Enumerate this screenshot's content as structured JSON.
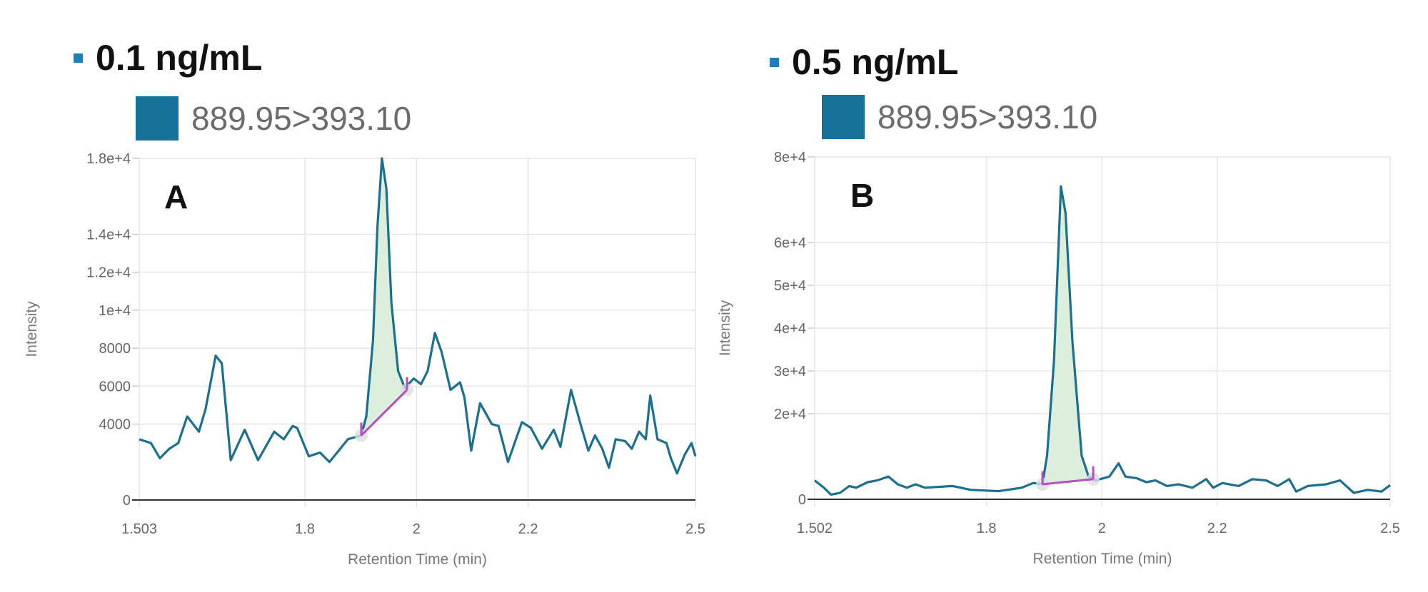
{
  "colors": {
    "title_marker": "#1a7fc1",
    "trace": "#1b6f8f",
    "legend_swatch": "#17729a",
    "peak_fill": "#d8edd9",
    "baseline": "#b44fc0",
    "grid": "#e6e6e6"
  },
  "chart_data": [
    {
      "type": "line",
      "title": "0.1 ng/mL",
      "panel_label": "A",
      "legend": [
        "889.95>393.10"
      ],
      "xlabel": "Retention Time (min)",
      "ylabel": "Intensity",
      "xlim": [
        1.503,
        2.5
      ],
      "ylim": [
        0,
        18000
      ],
      "xticks": [
        1.503,
        1.8,
        2,
        2.2,
        2.5
      ],
      "xtick_labels": [
        "1.503",
        "1.8",
        "2",
        "2.2",
        "2.5"
      ],
      "yticks": [
        0,
        4000,
        6000,
        8000,
        10000,
        12000,
        14000,
        18000
      ],
      "ytick_labels": [
        "0",
        "4000",
        "6000",
        "8000",
        "1e+4",
        "1.2e+4",
        "1.4e+4",
        "1.8e+4"
      ],
      "grid": true,
      "series": [
        {
          "name": "889.95>393.10",
          "x": [
            1.503,
            1.524,
            1.54,
            1.557,
            1.573,
            1.589,
            1.61,
            1.622,
            1.64,
            1.651,
            1.667,
            1.692,
            1.716,
            1.745,
            1.762,
            1.778,
            1.786,
            1.807,
            1.827,
            1.844,
            1.877,
            1.901,
            1.91,
            1.922,
            1.93,
            1.938,
            1.946,
            1.955,
            1.967,
            1.979,
            1.995,
            2.008,
            2.02,
            2.033,
            2.045,
            2.061,
            2.078,
            2.086,
            2.098,
            2.114,
            2.135,
            2.147,
            2.164,
            2.189,
            2.205,
            2.225,
            2.246,
            2.258,
            2.277,
            2.295,
            2.308,
            2.32,
            2.333,
            2.345,
            2.357,
            2.374,
            2.386,
            2.399,
            2.411,
            2.419,
            2.432,
            2.448,
            2.456,
            2.467,
            2.481,
            2.493,
            2.5
          ],
          "y": [
            3200,
            3000,
            2200,
            2700,
            3000,
            4400,
            3600,
            4800,
            7600,
            7200,
            2100,
            3700,
            2100,
            3600,
            3200,
            3900,
            3800,
            2300,
            2500,
            2000,
            3200,
            3400,
            4400,
            8400,
            14400,
            18000,
            16400,
            10400,
            6800,
            5900,
            6400,
            6100,
            6800,
            8800,
            7800,
            5800,
            6200,
            5400,
            2600,
            5100,
            4000,
            3900,
            2000,
            4100,
            3800,
            2700,
            3700,
            2800,
            5800,
            3900,
            2600,
            3400,
            2700,
            1700,
            3200,
            3100,
            2700,
            3600,
            3200,
            5500,
            3200,
            3000,
            2200,
            1400,
            2400,
            3000,
            2300
          ]
        }
      ],
      "integration": {
        "start": [
          1.901,
          3400
        ],
        "end": [
          1.983,
          5800
        ]
      }
    },
    {
      "type": "line",
      "title": "0.5 ng/mL",
      "panel_label": "B",
      "legend": [
        "889.95>393.10"
      ],
      "xlabel": "Retention Time (min)",
      "ylabel": "Intensity",
      "xlim": [
        1.502,
        2.5
      ],
      "ylim": [
        0,
        80000
      ],
      "xticks": [
        1.502,
        1.8,
        2,
        2.2,
        2.5
      ],
      "xtick_labels": [
        "1.502",
        "1.8",
        "2",
        "2.2",
        "2.5"
      ],
      "yticks": [
        0,
        20000,
        30000,
        40000,
        50000,
        60000,
        80000
      ],
      "ytick_labels": [
        "0",
        "2e+4",
        "3e+4",
        "4e+4",
        "5e+4",
        "6e+4",
        "8e+4"
      ],
      "grid": true,
      "series": [
        {
          "name": "889.95>393.10",
          "x": [
            1.502,
            1.518,
            1.53,
            1.546,
            1.562,
            1.574,
            1.594,
            1.61,
            1.63,
            1.646,
            1.662,
            1.677,
            1.693,
            1.741,
            1.773,
            1.821,
            1.861,
            1.881,
            1.897,
            1.905,
            1.917,
            1.929,
            1.937,
            1.949,
            1.965,
            1.977,
            1.989,
            2.013,
            2.029,
            2.041,
            2.061,
            2.077,
            2.093,
            2.113,
            2.133,
            2.157,
            2.181,
            2.193,
            2.209,
            2.237,
            2.261,
            2.285,
            2.305,
            2.325,
            2.337,
            2.357,
            2.389,
            2.413,
            2.437,
            2.461,
            2.485,
            2.5
          ],
          "y": [
            4400,
            2700,
            1100,
            1500,
            3100,
            2700,
            4000,
            4400,
            5300,
            3500,
            2700,
            3500,
            2700,
            3100,
            2200,
            1900,
            2700,
            3800,
            3500,
            10200,
            32300,
            73100,
            66900,
            36800,
            10200,
            5300,
            4400,
            5300,
            8400,
            5300,
            4900,
            4000,
            4400,
            3100,
            3500,
            2700,
            4700,
            2700,
            3800,
            3100,
            4700,
            4400,
            3100,
            4700,
            1800,
            3100,
            3500,
            4400,
            1500,
            2200,
            1800,
            3300
          ]
        }
      ],
      "integration": {
        "start": [
          1.897,
          3500
        ],
        "end": [
          1.985,
          4700
        ]
      }
    }
  ]
}
